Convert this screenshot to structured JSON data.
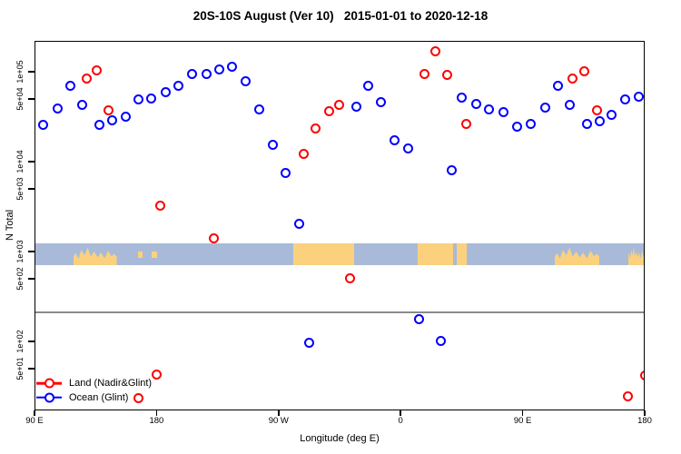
{
  "title": "20S-10S August (Ver 10)   2015-01-01 to 2020-12-18",
  "chart_data": {
    "type": "scatter",
    "title": "20S-10S August (Ver 10)   2015-01-01 to 2020-12-18",
    "xlabel": "Longitude (deg E)",
    "ylabel": "N Total",
    "x_axis": {
      "note": "longitude axis spans 450 degrees, wrapping 90E to 180 to 90W to 0 to 90E to 180",
      "span_deg": 450,
      "tick_positions_deg": [
        0,
        90,
        180,
        270,
        360,
        450
      ],
      "tick_labels": [
        "90 E",
        "180",
        "90 W",
        "0",
        "90 E",
        "180"
      ]
    },
    "y_axis": {
      "scale": "log",
      "range": [
        17,
        220000
      ],
      "tick_values": [
        100000,
        50000,
        10000,
        5000,
        1000,
        500,
        100,
        50
      ],
      "tick_labels": [
        "1e+05",
        "5e+04",
        "1e+04",
        "5e+03",
        "1e+03",
        "5e+02",
        "1e+02",
        "5e+01"
      ]
    },
    "series": [
      {
        "name": "Land (Nadir&Glint)",
        "color": "#ff0000",
        "symbol": "open-circle",
        "points": [
          [
            37.5,
            85000
          ],
          [
            45.5,
            107000
          ],
          [
            53.6,
            37700
          ],
          [
            92.4,
            3280
          ],
          [
            131.9,
            1430
          ],
          [
            198.2,
            12600
          ],
          [
            206.3,
            24200
          ],
          [
            216.3,
            36800
          ],
          [
            224.3,
            44300
          ],
          [
            231.7,
            510
          ],
          [
            287.1,
            97700
          ],
          [
            294.9,
            172000
          ],
          [
            303.8,
            94400
          ],
          [
            317.6,
            26900
          ],
          [
            396.4,
            85600
          ],
          [
            404.9,
            103000
          ],
          [
            413.9,
            37700
          ],
          [
            75.9,
            24
          ],
          [
            89.3,
            44
          ],
          [
            437.1,
            25
          ],
          [
            449.4,
            43
          ]
        ]
      },
      {
        "name": "Ocean (Glint)",
        "color": "#0000ff",
        "symbol": "open-circle",
        "points": [
          [
            5.4,
            26000
          ],
          [
            16.1,
            39500
          ],
          [
            26.1,
            70600
          ],
          [
            34.8,
            44300
          ],
          [
            46.9,
            26000
          ],
          [
            56.3,
            29200
          ],
          [
            66.3,
            32700
          ],
          [
            76.3,
            49800
          ],
          [
            85.7,
            52100
          ],
          [
            95.8,
            60000
          ],
          [
            105.8,
            70600
          ],
          [
            115.2,
            95500
          ],
          [
            125.9,
            97700
          ],
          [
            135.3,
            108000
          ],
          [
            145.0,
            115600
          ],
          [
            154.7,
            80200
          ],
          [
            165.4,
            38800
          ],
          [
            175.2,
            15600
          ],
          [
            184.4,
            7600
          ],
          [
            194.4,
            2070
          ],
          [
            201.6,
            100
          ],
          [
            236.4,
            41700
          ],
          [
            245.1,
            70600
          ],
          [
            254.9,
            47500
          ],
          [
            265.0,
            17600
          ],
          [
            274.8,
            14400
          ],
          [
            283.0,
            180
          ],
          [
            298.9,
            104
          ],
          [
            306.9,
            8300
          ],
          [
            314.7,
            53300
          ],
          [
            324.8,
            45000
          ],
          [
            334.7,
            39000
          ],
          [
            345.5,
            36500
          ],
          [
            355.1,
            25000
          ],
          [
            365.2,
            26800
          ],
          [
            375.7,
            40700
          ],
          [
            385.7,
            71100
          ],
          [
            394.2,
            43300
          ],
          [
            406.9,
            26800
          ],
          [
            416.5,
            29000
          ],
          [
            424.7,
            33900
          ],
          [
            434.8,
            50000
          ],
          [
            445.1,
            53600
          ]
        ]
      }
    ],
    "reference_line": {
      "value": 216,
      "color": "#8a8a8a"
    },
    "map_band": {
      "description": "world map strip of the 20S-10S latitude band drawn across the plot",
      "center_value": 1000,
      "ocean_color": "#a8bad8",
      "land_color": "#fbd17e",
      "land_patches_deg": [
        {
          "from": 28,
          "to": 60,
          "coverage": "partial",
          "label": "Australia"
        },
        {
          "from": 76,
          "to": 79,
          "coverage": "speck",
          "label": "Vanuatu"
        },
        {
          "from": 86,
          "to": 89.5,
          "coverage": "speck",
          "label": "Fiji"
        },
        {
          "from": 190,
          "to": 235,
          "coverage": "full",
          "label": "South America"
        },
        {
          "from": 282,
          "to": 308,
          "coverage": "full",
          "label": "Africa"
        },
        {
          "from": 311,
          "to": 318,
          "coverage": "full",
          "label": "Madagascar"
        },
        {
          "from": 383,
          "to": 416,
          "coverage": "partial",
          "label": "Australia"
        },
        {
          "from": 437,
          "to": 450,
          "coverage": "partial",
          "label": "Fiji region"
        }
      ]
    },
    "legend": {
      "position": "bottom-left",
      "entries": [
        "Land (Nadir&Glint)",
        "Ocean (Glint)"
      ]
    }
  }
}
